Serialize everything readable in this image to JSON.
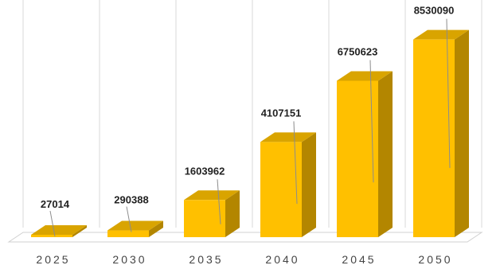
{
  "chart_data": {
    "type": "bar",
    "style": "3d-column",
    "categories": [
      "2025",
      "2030",
      "2035",
      "2040",
      "2045",
      "2050"
    ],
    "values": [
      27014,
      290388,
      1603962,
      4107151,
      6750623,
      8530090
    ],
    "data_labels": [
      "27014",
      "290388",
      "1603962",
      "4107151",
      "6750623",
      "8530090"
    ],
    "title": "",
    "xlabel": "",
    "ylabel": "",
    "ylim": [
      0,
      9000000
    ],
    "grid": "vertical",
    "legend": "none",
    "colors": {
      "bar_front": "#FFC000",
      "bar_side": "#B38600",
      "bar_top": "#D9A400",
      "grid": "#d9d9d9",
      "label": "#222222",
      "tick": "#444444"
    }
  }
}
